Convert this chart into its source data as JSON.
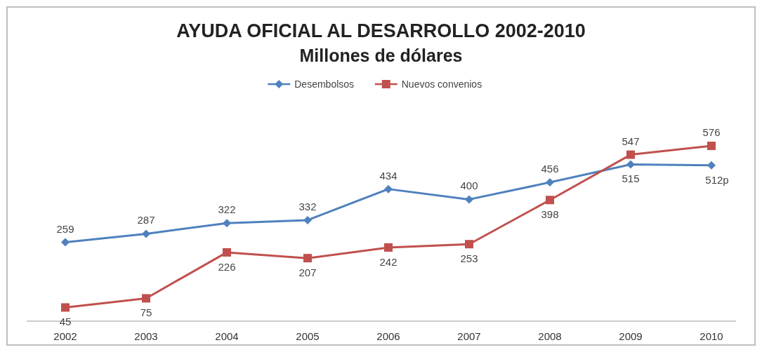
{
  "chart_data": {
    "type": "line",
    "title": "AYUDA OFICIAL AL DESARROLLO 2002-2010",
    "subtitle": "Millones de dólares",
    "categories": [
      "2002",
      "2003",
      "2004",
      "2005",
      "2006",
      "2007",
      "2008",
      "2009",
      "2010"
    ],
    "series": [
      {
        "name": "Desembolsos",
        "color": "#4f81bd",
        "marker": "diamond",
        "values": [
          259,
          287,
          322,
          332,
          434,
          400,
          456,
          515,
          512
        ],
        "value_labels": [
          "259",
          "287",
          "322",
          "332",
          "434",
          "400",
          "456",
          "515",
          "512p"
        ]
      },
      {
        "name": "Nuevos convenios",
        "color": "#c0504d",
        "marker": "square",
        "values": [
          45,
          75,
          226,
          207,
          242,
          253,
          398,
          547,
          576
        ],
        "value_labels": [
          "45",
          "75",
          "226",
          "207",
          "242",
          "253",
          "398",
          "547",
          "576"
        ]
      }
    ],
    "tick_labels": "x",
    "legend": "top",
    "grid": false
  }
}
